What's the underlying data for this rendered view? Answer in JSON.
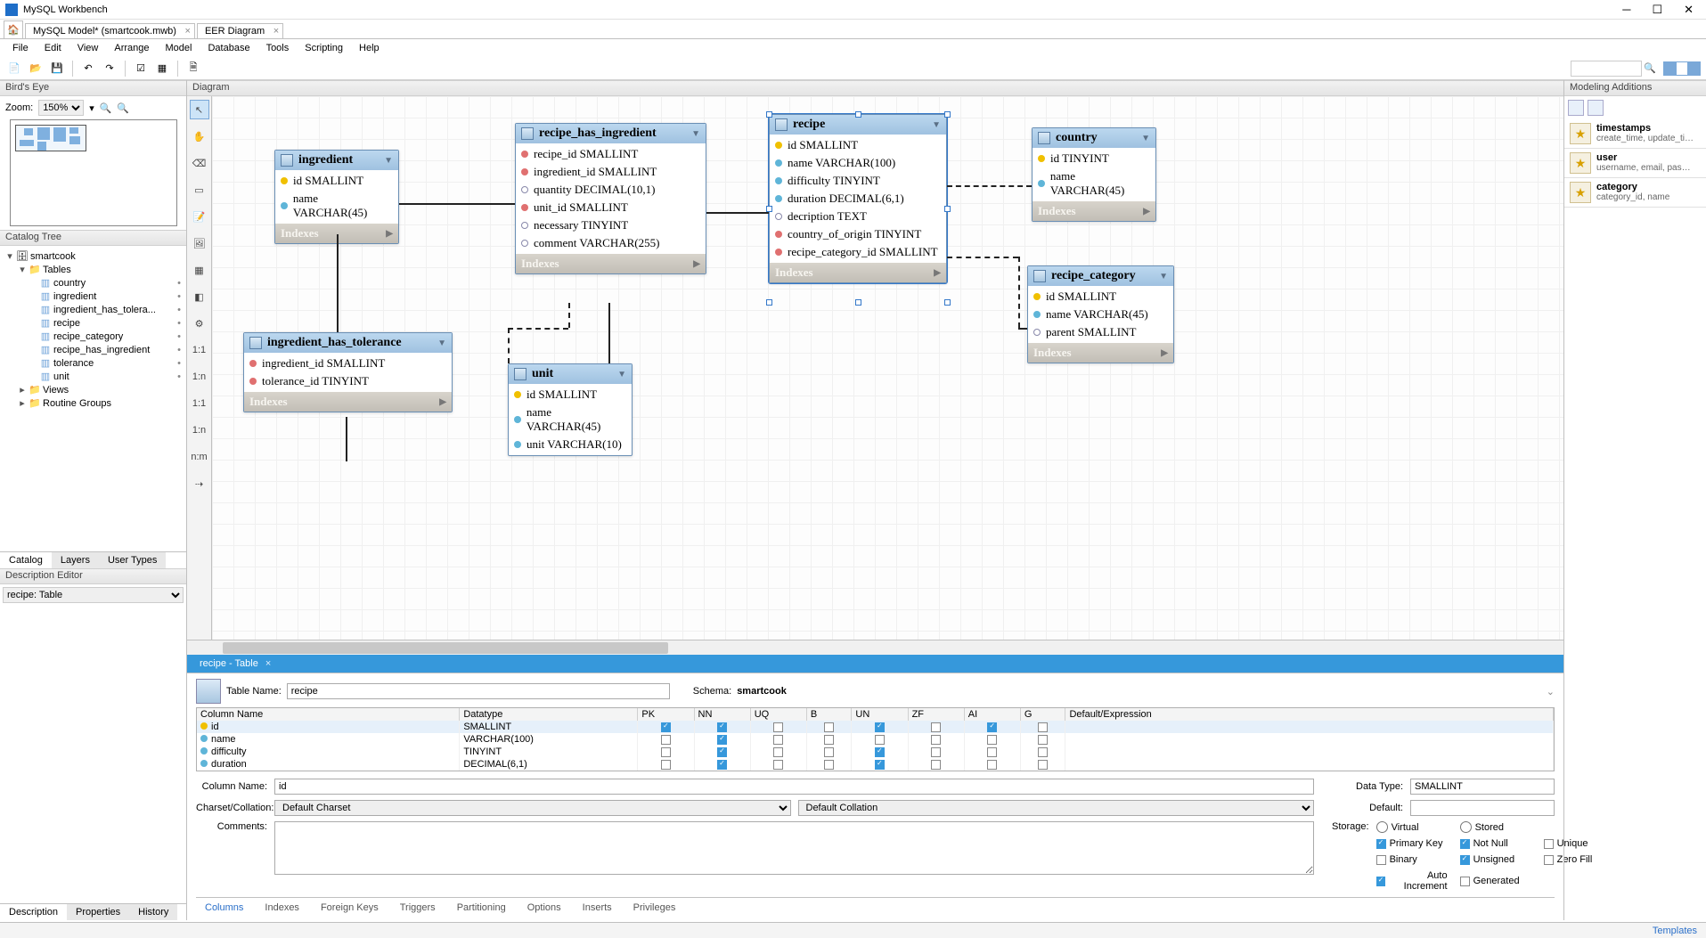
{
  "window": {
    "title": "MySQL Workbench"
  },
  "file_tabs": [
    {
      "label": "MySQL Model* (smartcook.mwb)"
    },
    {
      "label": "EER Diagram"
    }
  ],
  "menu": [
    "File",
    "Edit",
    "View",
    "Arrange",
    "Model",
    "Database",
    "Tools",
    "Scripting",
    "Help"
  ],
  "birdseye": {
    "title": "Bird's Eye",
    "zoom_label": "Zoom:",
    "zoom_value": "150%"
  },
  "catalog": {
    "title": "Catalog Tree",
    "schema": "smartcook",
    "tables_label": "Tables",
    "tables": [
      "country",
      "ingredient",
      "ingredient_has_tolera...",
      "recipe",
      "recipe_category",
      "recipe_has_ingredient",
      "tolerance",
      "unit"
    ],
    "views": "Views",
    "routines": "Routine Groups",
    "bottom_tabs": [
      "Catalog",
      "Layers",
      "User Types"
    ]
  },
  "description": {
    "title": "Description Editor",
    "value": "recipe: Table"
  },
  "diagram": {
    "title": "Diagram"
  },
  "entities": {
    "ingredient": {
      "name": "ingredient",
      "indexes": "Indexes",
      "cols": [
        {
          "k": "pk",
          "t": "id SMALLINT"
        },
        {
          "k": "nn",
          "t": "name VARCHAR(45)"
        }
      ]
    },
    "recipe_has_ingredient": {
      "name": "recipe_has_ingredient",
      "indexes": "Indexes",
      "cols": [
        {
          "k": "fk",
          "t": "recipe_id SMALLINT"
        },
        {
          "k": "fk",
          "t": "ingredient_id SMALLINT"
        },
        {
          "k": "nl",
          "t": "quantity DECIMAL(10,1)"
        },
        {
          "k": "fk",
          "t": "unit_id SMALLINT"
        },
        {
          "k": "nl",
          "t": "necessary TINYINT"
        },
        {
          "k": "nl",
          "t": "comment VARCHAR(255)"
        }
      ]
    },
    "recipe": {
      "name": "recipe",
      "indexes": "Indexes",
      "cols": [
        {
          "k": "pk",
          "t": "id SMALLINT"
        },
        {
          "k": "nn",
          "t": "name VARCHAR(100)"
        },
        {
          "k": "nn",
          "t": "difficulty TINYINT"
        },
        {
          "k": "nn",
          "t": "duration DECIMAL(6,1)"
        },
        {
          "k": "nl",
          "t": "decription TEXT"
        },
        {
          "k": "fk",
          "t": "country_of_origin TINYINT"
        },
        {
          "k": "fk",
          "t": "recipe_category_id SMALLINT"
        }
      ]
    },
    "country": {
      "name": "country",
      "indexes": "Indexes",
      "cols": [
        {
          "k": "pk",
          "t": "id TINYINT"
        },
        {
          "k": "nn",
          "t": "name VARCHAR(45)"
        }
      ]
    },
    "recipe_category": {
      "name": "recipe_category",
      "indexes": "Indexes",
      "cols": [
        {
          "k": "pk",
          "t": "id SMALLINT"
        },
        {
          "k": "nn",
          "t": "name VARCHAR(45)"
        },
        {
          "k": "nl",
          "t": "parent SMALLINT"
        }
      ]
    },
    "ingredient_has_tolerance": {
      "name": "ingredient_has_tolerance",
      "indexes": "Indexes",
      "cols": [
        {
          "k": "fk",
          "t": "ingredient_id SMALLINT"
        },
        {
          "k": "fk",
          "t": "tolerance_id TINYINT"
        }
      ]
    },
    "unit": {
      "name": "unit",
      "cols": [
        {
          "k": "pk",
          "t": "id SMALLINT"
        },
        {
          "k": "nn",
          "t": "name VARCHAR(45)"
        },
        {
          "k": "nn",
          "t": "unit VARCHAR(10)"
        }
      ]
    }
  },
  "bottom_tab": {
    "label": "recipe - Table"
  },
  "editor": {
    "table_name_label": "Table Name:",
    "table_name": "recipe",
    "schema_label": "Schema:",
    "schema": "smartcook",
    "headers": [
      "Column Name",
      "Datatype",
      "PK",
      "NN",
      "UQ",
      "B",
      "UN",
      "ZF",
      "AI",
      "G",
      "Default/Expression"
    ],
    "rows": [
      {
        "name": "id",
        "type": "SMALLINT",
        "pk": true,
        "nn": true,
        "uq": false,
        "b": false,
        "un": true,
        "zf": false,
        "ai": true,
        "g": false,
        "def": ""
      },
      {
        "name": "name",
        "type": "VARCHAR(100)",
        "pk": false,
        "nn": true,
        "uq": false,
        "b": false,
        "un": false,
        "zf": false,
        "ai": false,
        "g": false,
        "def": ""
      },
      {
        "name": "difficulty",
        "type": "TINYINT",
        "pk": false,
        "nn": true,
        "uq": false,
        "b": false,
        "un": true,
        "zf": false,
        "ai": false,
        "g": false,
        "def": ""
      },
      {
        "name": "duration",
        "type": "DECIMAL(6,1)",
        "pk": false,
        "nn": true,
        "uq": false,
        "b": false,
        "un": true,
        "zf": false,
        "ai": false,
        "g": false,
        "def": ""
      }
    ],
    "col_name_label": "Column Name:",
    "col_name": "id",
    "datatype_label": "Data Type:",
    "datatype": "SMALLINT",
    "charset_label": "Charset/Collation:",
    "charset": "Default Charset",
    "collation": "Default Collation",
    "default_label": "Default:",
    "comments_label": "Comments:",
    "storage_label": "Storage:",
    "storage": {
      "virtual": "Virtual",
      "stored": "Stored",
      "primary_key": "Primary Key",
      "not_null": "Not Null",
      "unique": "Unique",
      "binary": "Binary",
      "unsigned": "Unsigned",
      "zero_fill": "Zero Fill",
      "auto_inc": "Auto Increment",
      "generated": "Generated"
    },
    "tabs": [
      "Columns",
      "Indexes",
      "Foreign Keys",
      "Triggers",
      "Partitioning",
      "Options",
      "Inserts",
      "Privileges"
    ],
    "left_tabs": [
      "Description",
      "Properties",
      "History"
    ]
  },
  "additions": {
    "title": "Modeling Additions",
    "items": [
      {
        "name": "timestamps",
        "desc": "create_time, update_time"
      },
      {
        "name": "user",
        "desc": "username, email, passwor..."
      },
      {
        "name": "category",
        "desc": "category_id, name"
      }
    ]
  },
  "status": {
    "templates": "Templates"
  }
}
